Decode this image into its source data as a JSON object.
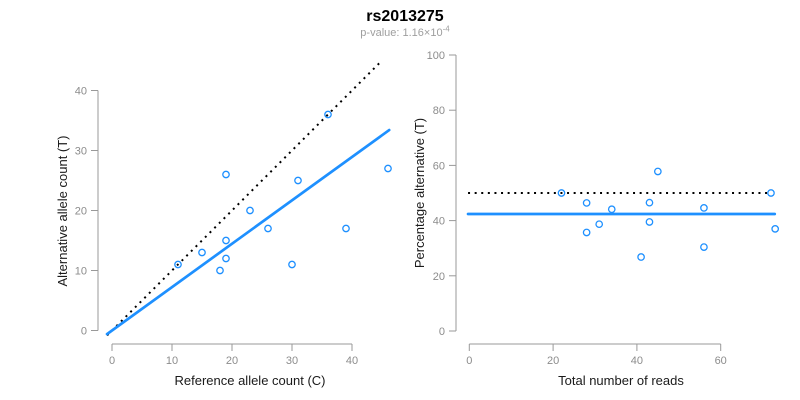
{
  "header": {
    "title": "rs2013275",
    "subtitle_main": "p-value: 1.16×10",
    "subtitle_exponent": "-4"
  },
  "colors": {
    "point": "#1E90FF",
    "fit_line": "#1E90FF",
    "identity_line": "#000000",
    "axis": "#999999",
    "tick_label": "#8c8c8c",
    "axis_title": "#1a1a1a",
    "title": "#000000",
    "subtitle": "#9e9e9e"
  },
  "chart_data": [
    {
      "type": "scatter",
      "xlabel": "Reference allele count (C)",
      "ylabel": "Alternative allele count (T)",
      "xticks": [
        0,
        10,
        20,
        30,
        40
      ],
      "yticks": [
        0,
        10,
        20,
        30,
        40
      ],
      "xlim": [
        0,
        46
      ],
      "ylim": [
        0,
        44
      ],
      "grid": false,
      "points": [
        [
          11,
          11
        ],
        [
          15,
          13
        ],
        [
          18,
          10
        ],
        [
          19,
          12
        ],
        [
          19,
          15
        ],
        [
          19,
          26
        ],
        [
          23,
          20
        ],
        [
          26,
          17
        ],
        [
          30,
          11
        ],
        [
          31,
          25
        ],
        [
          36,
          36
        ],
        [
          39,
          17
        ],
        [
          46,
          27
        ]
      ],
      "lines": [
        {
          "name": "identity-line",
          "type": "abline",
          "slope": 1,
          "intercept": 0,
          "style": "dotted",
          "color": "#000000"
        },
        {
          "name": "fit-line",
          "type": "abline",
          "slope": 0.723,
          "intercept": 0,
          "style": "solid",
          "color": "#1E90FF"
        }
      ]
    },
    {
      "type": "scatter",
      "xlabel": "Total number of reads",
      "ylabel": "Percentage alternative (T)",
      "xticks": [
        0,
        20,
        40,
        60
      ],
      "yticks": [
        0,
        20,
        40,
        60,
        80,
        100
      ],
      "xlim": [
        0,
        73
      ],
      "ylim": [
        0,
        100
      ],
      "grid": false,
      "points": [
        [
          22,
          50
        ],
        [
          28,
          46.4
        ],
        [
          28,
          35.7
        ],
        [
          31,
          38.7
        ],
        [
          34,
          44.1
        ],
        [
          41,
          26.8
        ],
        [
          43,
          39.5
        ],
        [
          43,
          46.5
        ],
        [
          45,
          57.8
        ],
        [
          56,
          30.4
        ],
        [
          56,
          44.6
        ],
        [
          72,
          50
        ],
        [
          73,
          37
        ]
      ],
      "lines": [
        {
          "name": "fifty-percent-line",
          "type": "hline",
          "y": 50,
          "xmax": 71.5,
          "style": "dotted",
          "color": "#000000"
        },
        {
          "name": "mean-line",
          "type": "hline",
          "y": 42.4,
          "xmax": 72.9,
          "style": "solid",
          "color": "#1E90FF"
        }
      ]
    }
  ]
}
